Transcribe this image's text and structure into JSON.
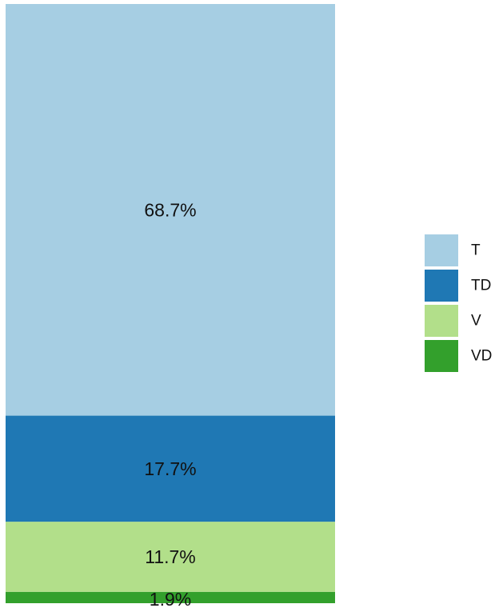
{
  "chart_data": {
    "type": "bar",
    "stacked": true,
    "orientation": "vertical",
    "value_unit": "percent",
    "categories": [
      ""
    ],
    "series": [
      {
        "name": "T",
        "values": [
          68.7
        ],
        "label": "68.7%",
        "color": "#a6cee3"
      },
      {
        "name": "TD",
        "values": [
          17.7
        ],
        "label": "17.7%",
        "color": "#1f78b4"
      },
      {
        "name": "V",
        "values": [
          11.7
        ],
        "label": "11.7%",
        "color": "#b2df8a"
      },
      {
        "name": "VD",
        "values": [
          1.9
        ],
        "label": "1.9%",
        "color": "#33a02c"
      }
    ],
    "legend": {
      "position": "right",
      "entries": [
        "T",
        "TD",
        "V",
        "VD"
      ]
    },
    "grid": false,
    "axes_visible": false,
    "title": "",
    "xlabel": "",
    "ylabel": ""
  }
}
